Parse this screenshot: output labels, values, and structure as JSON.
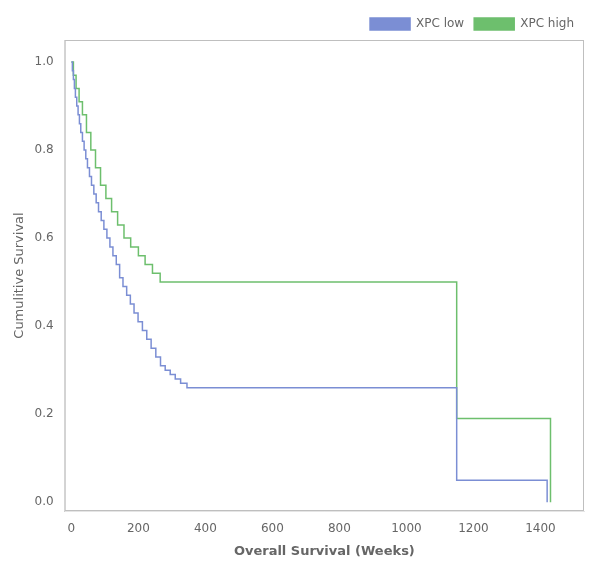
{
  "chart_data": {
    "type": "step",
    "xlabel": "Overall Survival (Weeks)",
    "ylabel": "Cumulitive Survival",
    "xlim": [
      -20,
      1530
    ],
    "ylim": [
      -0.02,
      1.05
    ],
    "xticks": [
      0,
      200,
      400,
      600,
      800,
      1000,
      1200,
      1400
    ],
    "yticks": [
      {
        "value": 0.0,
        "label": "0.0"
      },
      0.2,
      0.4,
      0.6,
      0.8,
      {
        "value": 1.0,
        "label": "1.0"
      }
    ],
    "grid": false,
    "legend": "upper right",
    "series": [
      {
        "name": "XPC low",
        "color": "#7b8ed4",
        "x": [
          0,
          3,
          6,
          9,
          12,
          16,
          20,
          24,
          28,
          33,
          38,
          43,
          48,
          54,
          60,
          67,
          74,
          81,
          89,
          97,
          106,
          115,
          124,
          134,
          144,
          154,
          165,
          176,
          187,
          199,
          212,
          225,
          238,
          252,
          266,
          280,
          295,
          310,
          326,
          345,
          365,
          385,
          410,
          440,
          470,
          500,
          530,
          560,
          600,
          1150,
          1200,
          1420
        ],
        "values": [
          1.0,
          0.98,
          0.96,
          0.94,
          0.92,
          0.9,
          0.88,
          0.86,
          0.84,
          0.82,
          0.8,
          0.78,
          0.76,
          0.74,
          0.72,
          0.7,
          0.68,
          0.66,
          0.64,
          0.62,
          0.6,
          0.58,
          0.56,
          0.54,
          0.51,
          0.49,
          0.47,
          0.45,
          0.43,
          0.41,
          0.39,
          0.37,
          0.35,
          0.33,
          0.31,
          0.3,
          0.29,
          0.28,
          0.27,
          0.26,
          0.26,
          0.26,
          0.26,
          0.26,
          0.26,
          0.26,
          0.26,
          0.26,
          0.26,
          0.05,
          0.05,
          0.0
        ]
      },
      {
        "name": "XPC high",
        "color": "#6dbf6d",
        "x": [
          0,
          6,
          14,
          23,
          33,
          45,
          58,
          72,
          87,
          103,
          120,
          138,
          157,
          177,
          200,
          220,
          242,
          265,
          300,
          340,
          385,
          430,
          480,
          540,
          1150,
          1200,
          1430
        ],
        "values": [
          1.0,
          0.97,
          0.94,
          0.91,
          0.88,
          0.84,
          0.8,
          0.76,
          0.72,
          0.69,
          0.66,
          0.63,
          0.6,
          0.58,
          0.56,
          0.54,
          0.52,
          0.5,
          0.5,
          0.5,
          0.5,
          0.5,
          0.5,
          0.5,
          0.19,
          0.19,
          0.0
        ]
      }
    ]
  }
}
